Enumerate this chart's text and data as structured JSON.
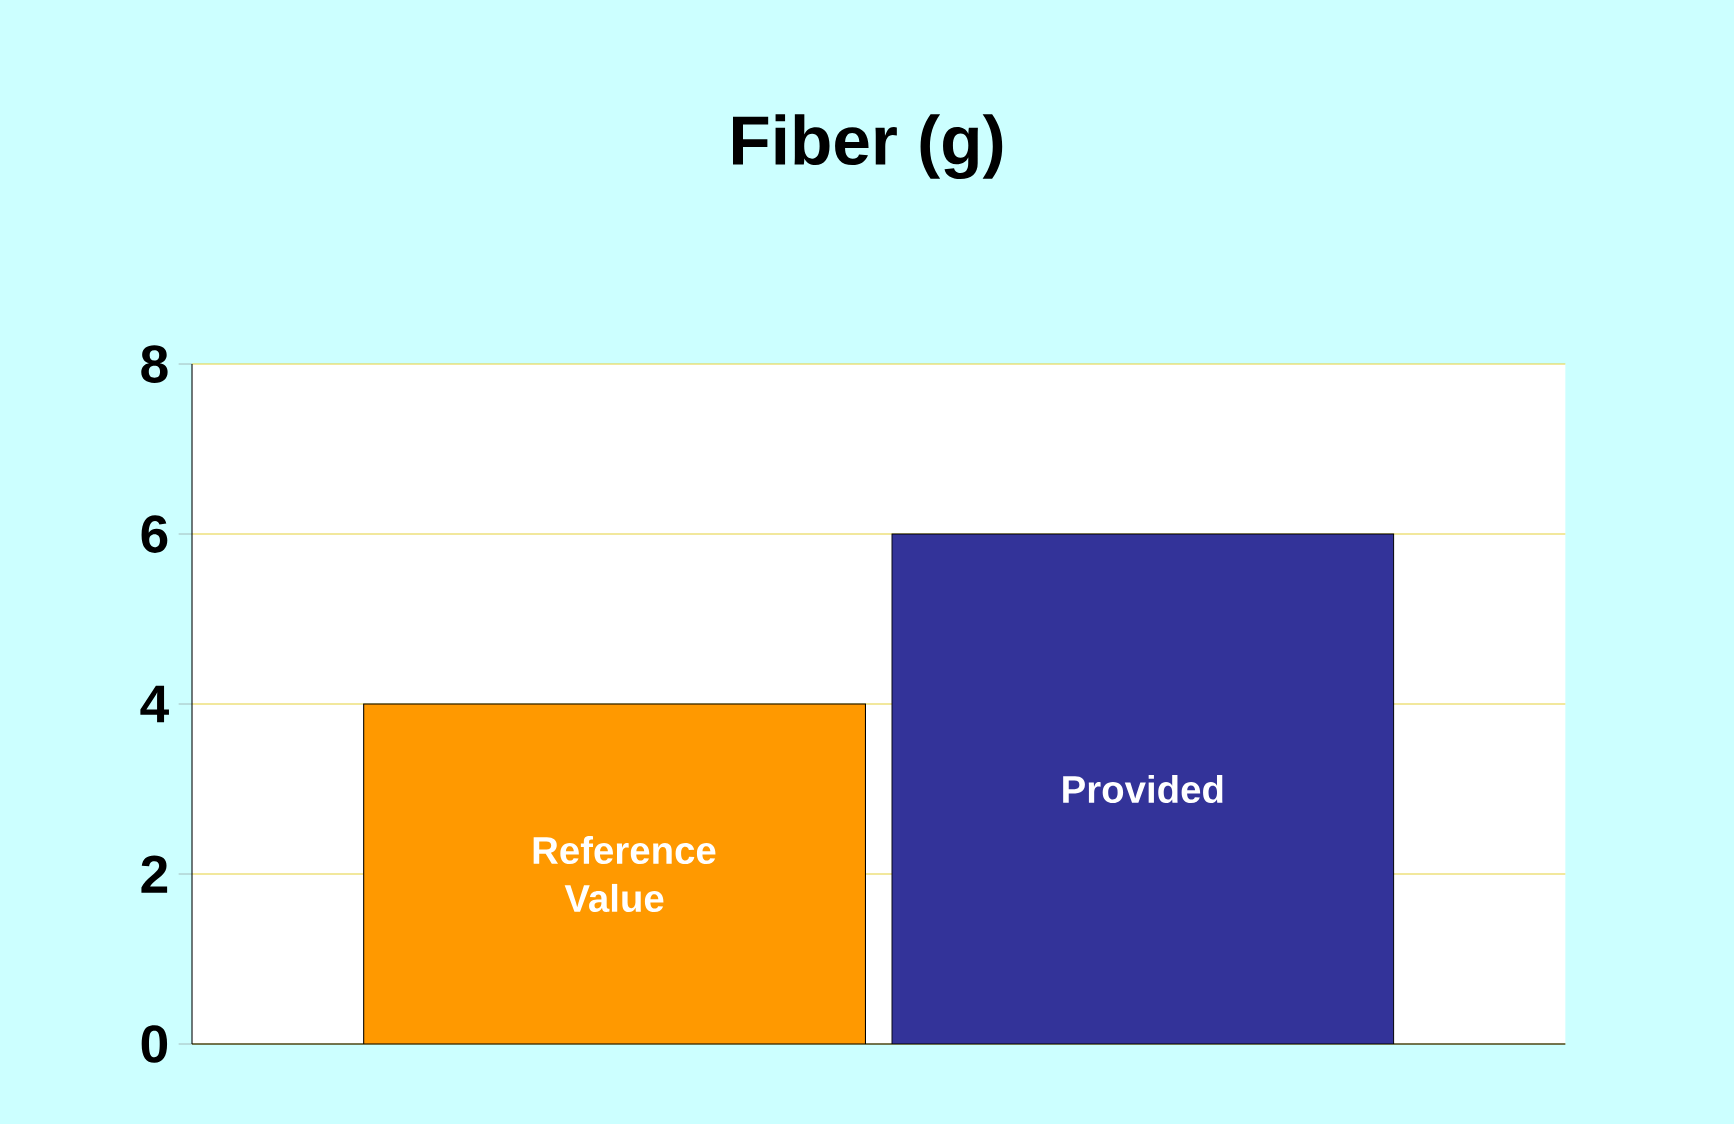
{
  "chart_data": {
    "type": "bar",
    "title": "Fiber (g)",
    "categories": [
      "Reference Value",
      "Provided"
    ],
    "values": [
      4,
      6
    ],
    "colors": [
      "#ff9900",
      "#333399"
    ],
    "ylim": [
      0,
      8
    ],
    "yticks": [
      0,
      2,
      4,
      6,
      8
    ],
    "grid": "y"
  }
}
